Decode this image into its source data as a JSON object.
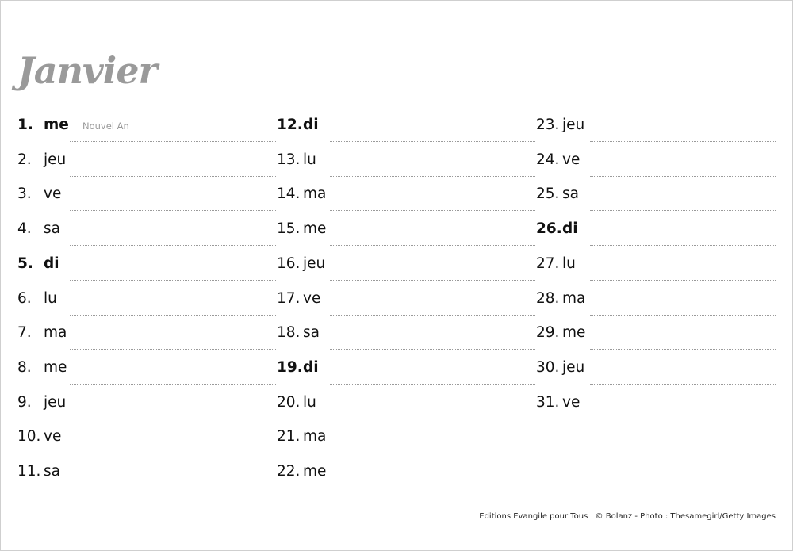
{
  "title": "Janvier",
  "columns": [
    [
      {
        "num": "1.",
        "day": "me",
        "bold": true,
        "note": "Nouvel An"
      },
      {
        "num": "2.",
        "day": "jeu"
      },
      {
        "num": "3.",
        "day": "ve"
      },
      {
        "num": "4.",
        "day": "sa"
      },
      {
        "num": "5.",
        "day": "di",
        "bold": true
      },
      {
        "num": "6.",
        "day": "lu"
      },
      {
        "num": "7.",
        "day": "ma"
      },
      {
        "num": "8.",
        "day": "me"
      },
      {
        "num": "9.",
        "day": "jeu"
      },
      {
        "num": "10.",
        "day": "ve"
      },
      {
        "num": "11.",
        "day": "sa"
      }
    ],
    [
      {
        "num": "12.",
        "day": "di",
        "bold": true
      },
      {
        "num": "13.",
        "day": "lu"
      },
      {
        "num": "14.",
        "day": "ma"
      },
      {
        "num": "15.",
        "day": "me"
      },
      {
        "num": "16.",
        "day": "jeu"
      },
      {
        "num": "17.",
        "day": "ve"
      },
      {
        "num": "18.",
        "day": "sa"
      },
      {
        "num": "19.",
        "day": "di",
        "bold": true
      },
      {
        "num": "20.",
        "day": "lu"
      },
      {
        "num": "21.",
        "day": "ma"
      },
      {
        "num": "22.",
        "day": "me"
      }
    ],
    [
      {
        "num": "23.",
        "day": "jeu"
      },
      {
        "num": "24.",
        "day": "ve"
      },
      {
        "num": "25.",
        "day": "sa"
      },
      {
        "num": "26.",
        "day": "di",
        "bold": true
      },
      {
        "num": "27.",
        "day": "lu"
      },
      {
        "num": "28.",
        "day": "ma"
      },
      {
        "num": "29.",
        "day": "me"
      },
      {
        "num": "30.",
        "day": "jeu"
      },
      {
        "num": "31.",
        "day": "ve"
      },
      {
        "num": "",
        "day": ""
      },
      {
        "num": "",
        "day": ""
      }
    ]
  ],
  "footer": {
    "publisher": "Editions Evangile pour Tous",
    "credits": "© Bolanz - Photo : Thesamegirl/Getty Images"
  }
}
